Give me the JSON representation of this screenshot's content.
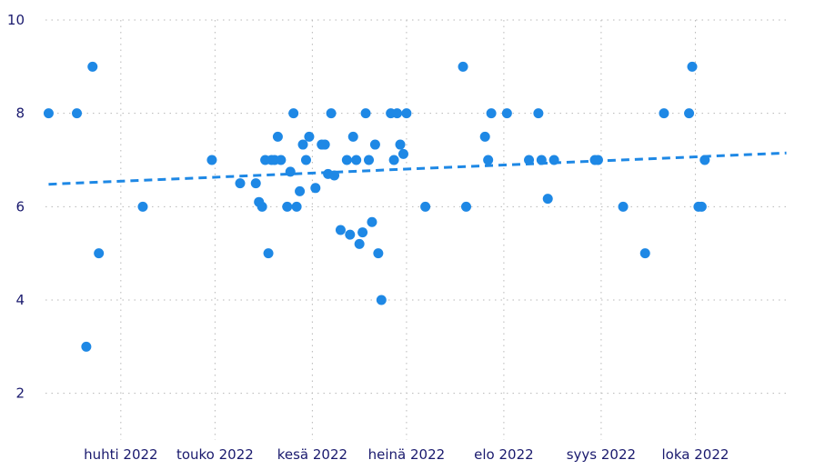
{
  "chart_data": {
    "type": "scatter",
    "title": "",
    "xlabel": "",
    "ylabel": "",
    "x_axis_type": "date",
    "xlim": [
      "2022-03-08",
      "2022-10-31"
    ],
    "ylim": [
      1,
      10
    ],
    "y_ticks": [
      2,
      4,
      6,
      8,
      10
    ],
    "x_ticks": [
      {
        "date": "2022-04-01",
        "label": "huhti 2022"
      },
      {
        "date": "2022-05-01",
        "label": "touko 2022"
      },
      {
        "date": "2022-06-01",
        "label": "kesä 2022"
      },
      {
        "date": "2022-07-01",
        "label": "heinä 2022"
      },
      {
        "date": "2022-08-01",
        "label": "elo 2022"
      },
      {
        "date": "2022-09-01",
        "label": "syys 2022"
      },
      {
        "date": "2022-10-01",
        "label": "loka 2022"
      }
    ],
    "grid": true,
    "point_color": "#1e88e5",
    "trend_color": "#1e88e5",
    "trendline": {
      "style": "dashed",
      "start": {
        "x": "2022-03-09",
        "y": 6.48
      },
      "end": {
        "x": "2022-10-30",
        "y": 7.15
      }
    },
    "points": [
      {
        "x": "2022-03-09",
        "y": 8
      },
      {
        "x": "2022-03-18",
        "y": 8
      },
      {
        "x": "2022-03-21",
        "y": 3
      },
      {
        "x": "2022-03-23",
        "y": 9
      },
      {
        "x": "2022-03-25",
        "y": 5
      },
      {
        "x": "2022-04-08",
        "y": 6
      },
      {
        "x": "2022-04-30",
        "y": 7
      },
      {
        "x": "2022-05-09",
        "y": 6.5
      },
      {
        "x": "2022-05-14",
        "y": 6.5
      },
      {
        "x": "2022-05-15",
        "y": 6.1
      },
      {
        "x": "2022-05-16",
        "y": 6
      },
      {
        "x": "2022-05-17",
        "y": 7
      },
      {
        "x": "2022-05-18",
        "y": 5
      },
      {
        "x": "2022-05-19",
        "y": 7
      },
      {
        "x": "2022-05-20",
        "y": 7
      },
      {
        "x": "2022-05-21",
        "y": 7.5
      },
      {
        "x": "2022-05-22",
        "y": 7
      },
      {
        "x": "2022-05-24",
        "y": 6
      },
      {
        "x": "2022-05-25",
        "y": 6.75
      },
      {
        "x": "2022-05-26",
        "y": 8
      },
      {
        "x": "2022-05-27",
        "y": 6
      },
      {
        "x": "2022-05-28",
        "y": 6.33
      },
      {
        "x": "2022-05-29",
        "y": 7.33
      },
      {
        "x": "2022-05-30",
        "y": 7
      },
      {
        "x": "2022-05-31",
        "y": 7.5
      },
      {
        "x": "2022-06-02",
        "y": 6.4
      },
      {
        "x": "2022-06-04",
        "y": 7.33
      },
      {
        "x": "2022-06-05",
        "y": 7.33
      },
      {
        "x": "2022-06-06",
        "y": 6.7
      },
      {
        "x": "2022-06-07",
        "y": 8
      },
      {
        "x": "2022-06-08",
        "y": 6.67
      },
      {
        "x": "2022-06-10",
        "y": 5.5
      },
      {
        "x": "2022-06-12",
        "y": 7
      },
      {
        "x": "2022-06-13",
        "y": 5.4
      },
      {
        "x": "2022-06-14",
        "y": 7.5
      },
      {
        "x": "2022-06-15",
        "y": 7
      },
      {
        "x": "2022-06-16",
        "y": 5.2
      },
      {
        "x": "2022-06-17",
        "y": 5.45
      },
      {
        "x": "2022-06-18",
        "y": 8
      },
      {
        "x": "2022-06-19",
        "y": 7
      },
      {
        "x": "2022-06-20",
        "y": 5.67
      },
      {
        "x": "2022-06-21",
        "y": 7.33
      },
      {
        "x": "2022-06-22",
        "y": 5
      },
      {
        "x": "2022-06-23",
        "y": 4
      },
      {
        "x": "2022-06-26",
        "y": 8
      },
      {
        "x": "2022-06-27",
        "y": 7
      },
      {
        "x": "2022-06-28",
        "y": 8
      },
      {
        "x": "2022-06-29",
        "y": 7.33
      },
      {
        "x": "2022-06-30",
        "y": 7.13
      },
      {
        "x": "2022-07-01",
        "y": 8
      },
      {
        "x": "2022-07-07",
        "y": 6
      },
      {
        "x": "2022-07-19",
        "y": 9
      },
      {
        "x": "2022-07-20",
        "y": 6
      },
      {
        "x": "2022-07-26",
        "y": 7.5
      },
      {
        "x": "2022-07-27",
        "y": 7
      },
      {
        "x": "2022-07-28",
        "y": 8
      },
      {
        "x": "2022-08-02",
        "y": 8
      },
      {
        "x": "2022-08-09",
        "y": 7
      },
      {
        "x": "2022-08-12",
        "y": 8
      },
      {
        "x": "2022-08-13",
        "y": 7
      },
      {
        "x": "2022-08-15",
        "y": 6.17
      },
      {
        "x": "2022-08-17",
        "y": 7
      },
      {
        "x": "2022-08-30",
        "y": 7
      },
      {
        "x": "2022-08-31",
        "y": 7
      },
      {
        "x": "2022-09-08",
        "y": 6
      },
      {
        "x": "2022-09-15",
        "y": 5
      },
      {
        "x": "2022-09-21",
        "y": 8
      },
      {
        "x": "2022-09-29",
        "y": 8
      },
      {
        "x": "2022-09-30",
        "y": 9
      },
      {
        "x": "2022-10-02",
        "y": 6
      },
      {
        "x": "2022-10-03",
        "y": 6
      },
      {
        "x": "2022-10-04",
        "y": 7
      }
    ]
  }
}
